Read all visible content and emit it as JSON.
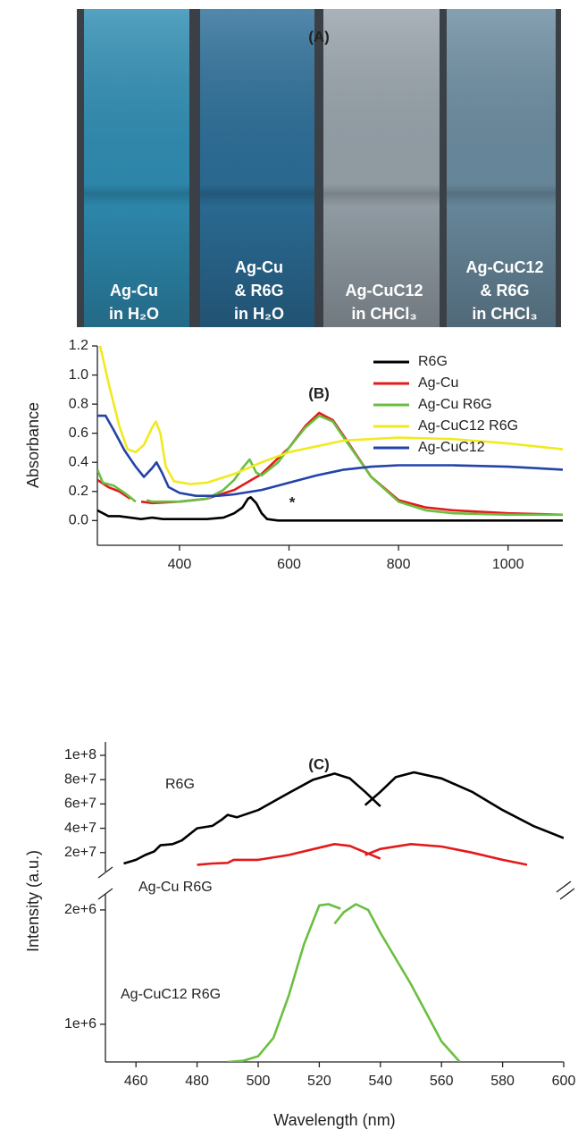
{
  "photo": {
    "label": "(A)",
    "cuvettes": [
      {
        "lines": [
          "Ag-Cu",
          "in H₂O"
        ],
        "color": "#2f8db3"
      },
      {
        "lines": [
          "Ag-Cu",
          "& R6G",
          "in H₂O"
        ],
        "color": "#2c6e98"
      },
      {
        "lines": [
          "Ag-CuC12",
          "in CHCl₃"
        ],
        "color": "#97a2aa"
      },
      {
        "lines": [
          "Ag-CuC12",
          "& R6G",
          "in CHCl₃"
        ],
        "color": "#6b8ca0"
      }
    ]
  },
  "chart_data": [
    {
      "type": "line",
      "annotations": [
        "(B)",
        "*"
      ],
      "ylabel": "Absorbance",
      "xlim": [
        250,
        1100
      ],
      "xticks": [
        400,
        600,
        800,
        1000
      ],
      "ylim": [
        -0.17,
        1.2
      ],
      "yticks": [
        {
          "value": 0,
          "label": "0.0"
        },
        0.2,
        0.4,
        0.6,
        0.8,
        {
          "value": 1,
          "label": "1.0"
        },
        1.2
      ],
      "legend": "upper right",
      "series": [
        {
          "name": "R6G",
          "color": "#000000",
          "x": [
            250,
            270,
            290,
            310,
            330,
            350,
            370,
            400,
            450,
            480,
            500,
            515,
            525,
            530,
            540,
            550,
            560,
            580,
            600,
            700,
            800,
            1000,
            1100
          ],
          "values": [
            0.07,
            0.03,
            0.03,
            0.02,
            0.01,
            0.02,
            0.01,
            0.01,
            0.01,
            0.02,
            0.05,
            0.09,
            0.15,
            0.16,
            0.12,
            0.05,
            0.01,
            0,
            0,
            0,
            0,
            0,
            0
          ]
        },
        {
          "name": "Ag-Cu",
          "color": "#e31a1c",
          "x": [
            250,
            270,
            290,
            310,
            null,
            330,
            350,
            400,
            450,
            500,
            550,
            600,
            630,
            655,
            680,
            700,
            750,
            800,
            850,
            900,
            1000,
            1100
          ],
          "values": [
            0.28,
            0.23,
            0.2,
            0.15,
            null,
            0.13,
            0.12,
            0.13,
            0.15,
            0.21,
            0.32,
            0.5,
            0.65,
            0.74,
            0.69,
            0.58,
            0.3,
            0.14,
            0.09,
            0.07,
            0.05,
            0.04
          ]
        },
        {
          "name": "Ag-Cu R6G",
          "color": "#6abf40",
          "x": [
            250,
            260,
            280,
            300,
            320,
            null,
            340,
            350,
            400,
            450,
            480,
            500,
            515,
            528,
            540,
            550,
            580,
            600,
            630,
            655,
            680,
            700,
            750,
            800,
            850,
            900,
            1000,
            1100
          ],
          "values": [
            0.35,
            0.26,
            0.24,
            0.19,
            0.13,
            null,
            0.14,
            0.13,
            0.13,
            0.15,
            0.21,
            0.28,
            0.36,
            0.42,
            0.33,
            0.31,
            0.4,
            0.5,
            0.64,
            0.72,
            0.68,
            0.57,
            0.3,
            0.13,
            0.07,
            0.05,
            0.04,
            0.04
          ]
        },
        {
          "name": "Ag-CuC12 R6G",
          "color": "#f0ea1e",
          "x": [
            255,
            270,
            290,
            305,
            320,
            335,
            350,
            357,
            365,
            375,
            390,
            420,
            450,
            500,
            550,
            600,
            700,
            800,
            900,
            1000,
            1100
          ],
          "values": [
            1.2,
            0.95,
            0.65,
            0.49,
            0.47,
            0.52,
            0.64,
            0.68,
            0.6,
            0.37,
            0.27,
            0.25,
            0.26,
            0.32,
            0.4,
            0.47,
            0.55,
            0.57,
            0.56,
            0.53,
            0.49
          ]
        },
        {
          "name": "Ag-CuC12",
          "color": "#2343a8",
          "x": [
            250,
            265,
            280,
            300,
            320,
            335,
            350,
            358,
            368,
            380,
            400,
            430,
            470,
            500,
            550,
            600,
            650,
            700,
            750,
            800,
            900,
            1000,
            1050,
            1100
          ],
          "values": [
            0.72,
            0.72,
            0.62,
            0.48,
            0.37,
            0.3,
            0.36,
            0.4,
            0.33,
            0.23,
            0.19,
            0.17,
            0.17,
            0.18,
            0.21,
            0.26,
            0.31,
            0.35,
            0.37,
            0.38,
            0.38,
            0.37,
            0.36,
            0.35
          ]
        }
      ]
    },
    {
      "type": "line",
      "annotations": [
        "(C)"
      ],
      "ylabel": "Intensity (a.u.)",
      "xlim": [
        450,
        600
      ],
      "ylim": [
        4400000,
        111000000
      ],
      "yticks": [
        {
          "value": 20000000,
          "label": "2e+7"
        },
        {
          "value": 40000000,
          "label": "4e+7"
        },
        {
          "value": 60000000,
          "label": "6e+7"
        },
        {
          "value": 80000000,
          "label": "8e+7"
        },
        {
          "value": 100000000,
          "label": "1e+8"
        }
      ],
      "series": [
        {
          "name": "R6G",
          "color": "#000000",
          "x": [
            456,
            460,
            463,
            466,
            468,
            472,
            475,
            478,
            480,
            485,
            488,
            490,
            493,
            500,
            510,
            518,
            525,
            530,
            535,
            540,
            null,
            535,
            540,
            545,
            551,
            560,
            570,
            580,
            590,
            600
          ],
          "values": [
            11000000,
            14000000,
            18000000,
            21000000,
            26000000,
            27000000,
            30000000,
            36000000,
            40000000,
            42000000,
            47000000,
            51000000,
            49000000,
            55000000,
            69000000,
            80000000,
            85000000,
            81000000,
            70000000,
            58000000,
            null,
            59000000,
            70000000,
            82000000,
            86000000,
            81000000,
            70000000,
            55000000,
            42000000,
            32000000
          ]
        },
        {
          "name": "Ag-Cu R6G",
          "color": "#e31a1c",
          "x": [
            480,
            485,
            490,
            492,
            500,
            510,
            520,
            525,
            530,
            540,
            null,
            535,
            540,
            550,
            560,
            570,
            580,
            588
          ],
          "values": [
            10000000,
            11000000,
            11500000,
            14000000,
            14000000,
            18000000,
            24000000,
            27000000,
            25500000,
            15000000,
            null,
            18000000,
            23000000,
            27000000,
            25000000,
            20000000,
            14000000,
            10000000
          ]
        }
      ]
    },
    {
      "type": "line",
      "xlabel": "Wavelength (nm)",
      "xlim": [
        450,
        600
      ],
      "xticks": [
        460,
        480,
        500,
        520,
        540,
        560,
        580,
        600
      ],
      "ylim": [
        670000,
        2140000
      ],
      "yticks": [
        {
          "value": 1000000,
          "label": "1e+6"
        },
        {
          "value": 2000000,
          "label": "2e+6"
        }
      ],
      "series": [
        {
          "name": "Ag-CuC12 R6G",
          "color": "#6abf40",
          "x": [
            490,
            495,
            500,
            505,
            510,
            515,
            520,
            523,
            527,
            null,
            525,
            528,
            532,
            536,
            540,
            550,
            560,
            566
          ],
          "values": [
            670000,
            680000,
            720000,
            880000,
            1250000,
            1700000,
            2040000,
            2050000,
            2010000,
            null,
            1880000,
            1980000,
            2050000,
            2000000,
            1800000,
            1350000,
            850000,
            670000
          ]
        }
      ]
    }
  ]
}
